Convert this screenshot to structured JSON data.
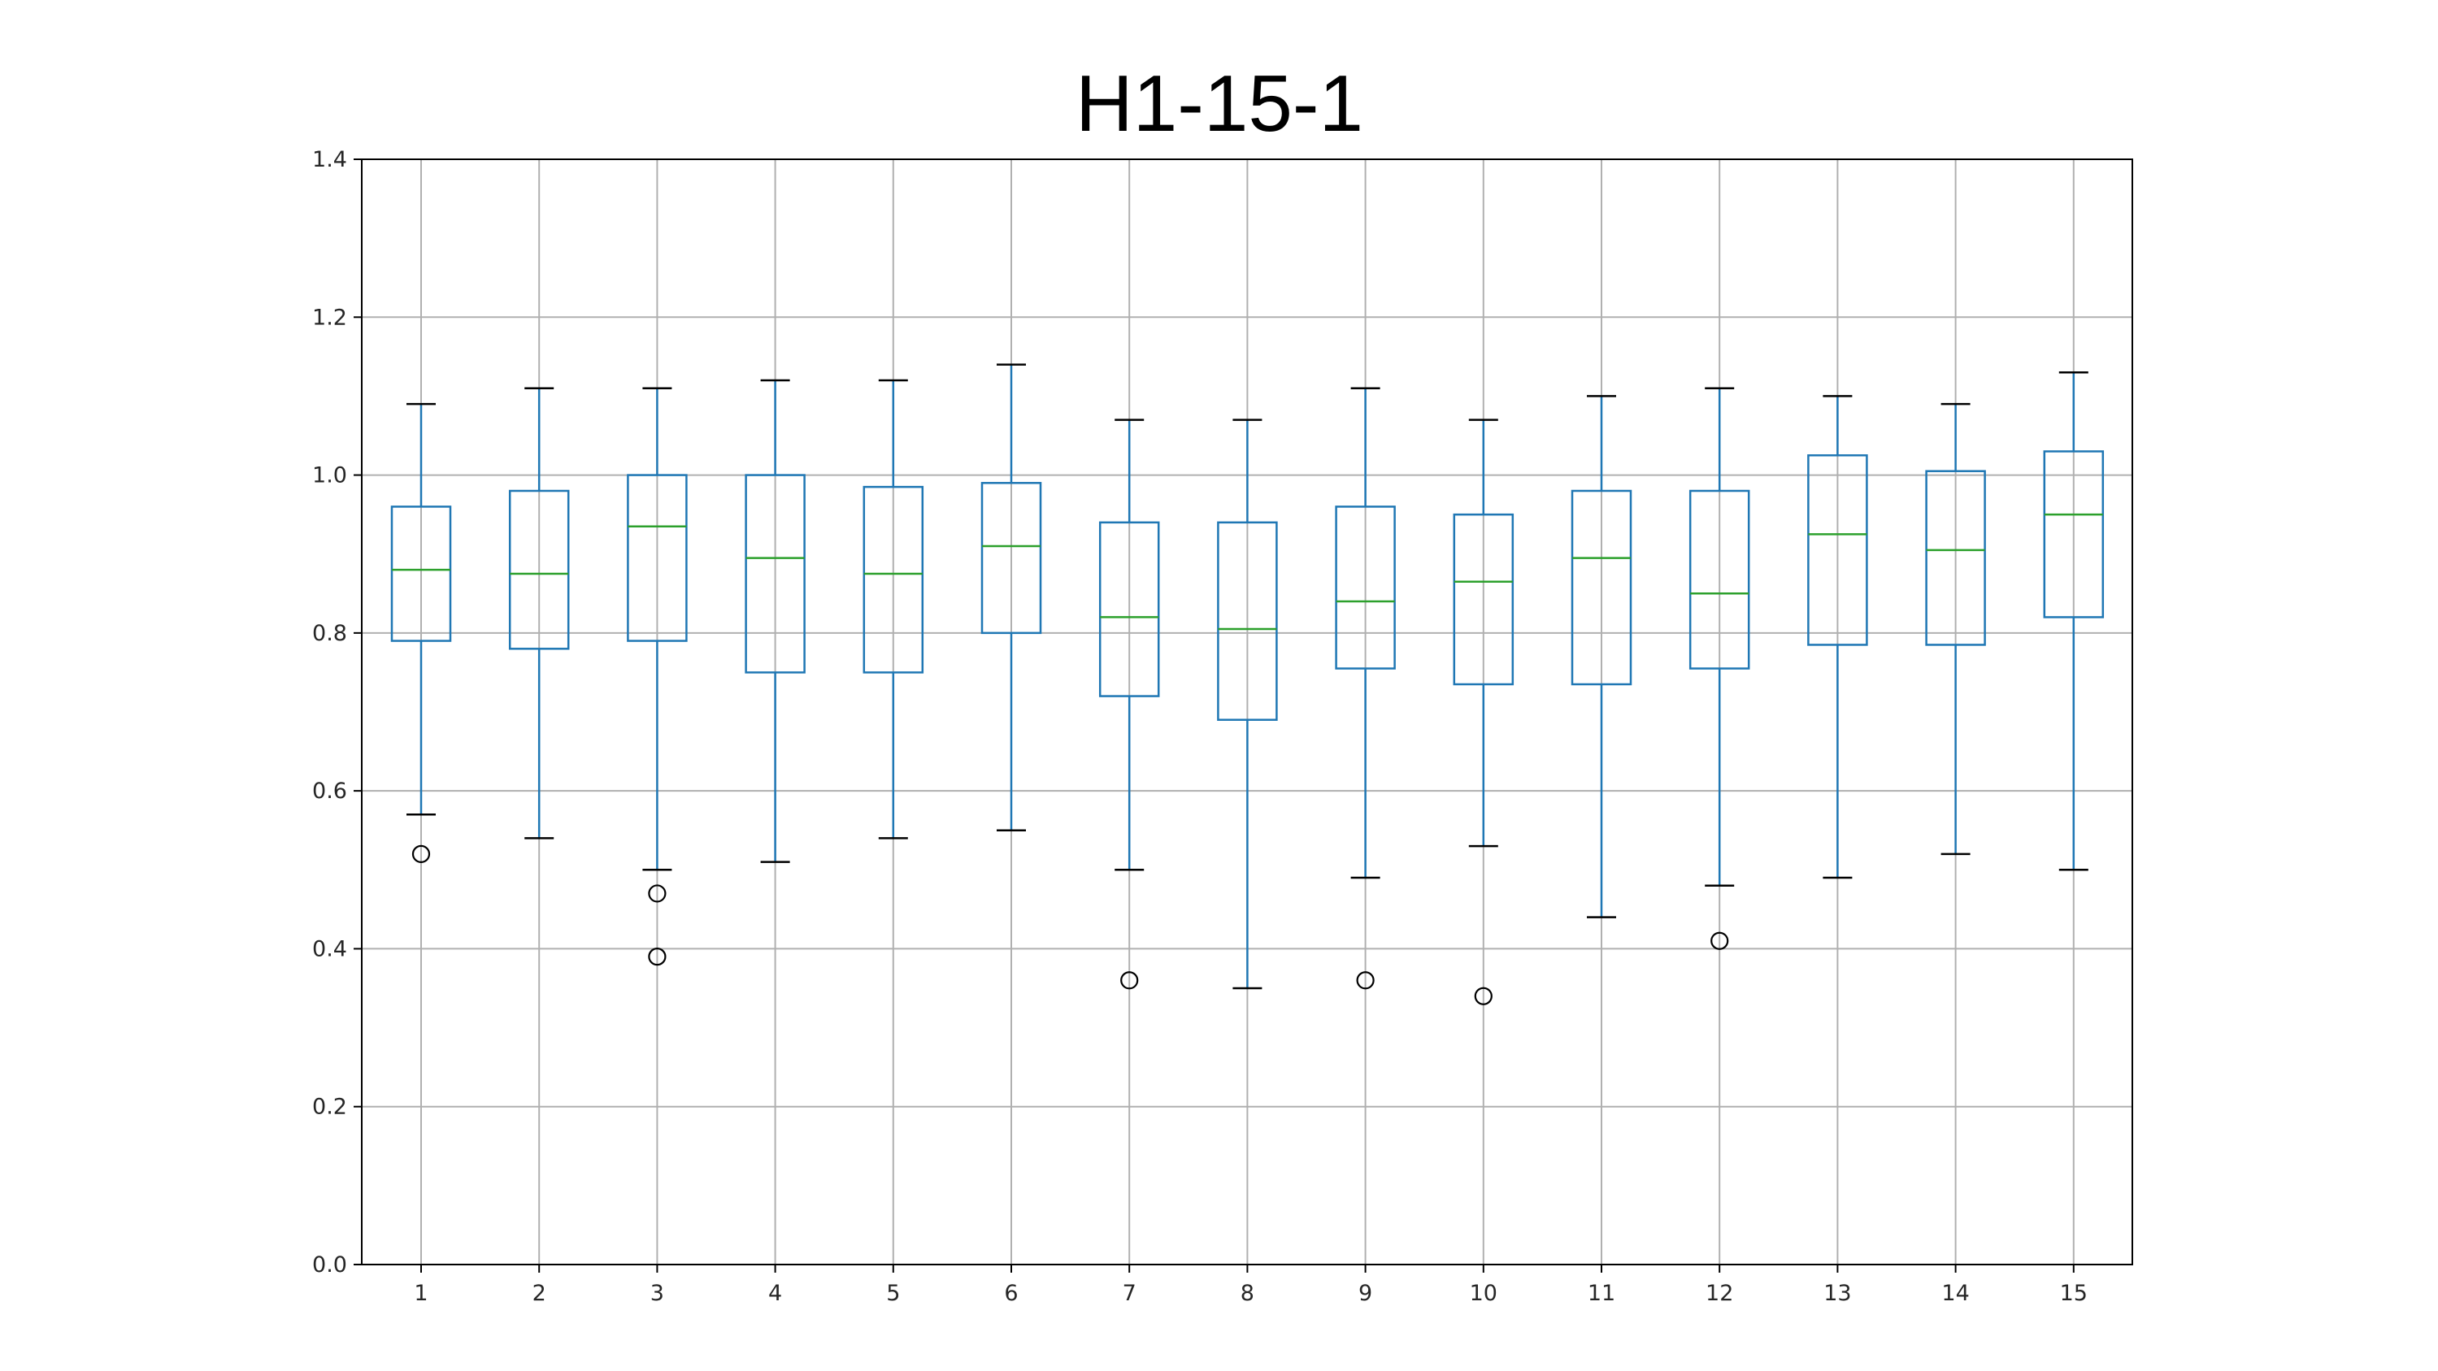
{
  "chart_data": {
    "type": "boxplot",
    "title": "H1-15-1",
    "xlabel": "",
    "ylabel": "",
    "categories": [
      "1",
      "2",
      "3",
      "4",
      "5",
      "6",
      "7",
      "8",
      "9",
      "10",
      "11",
      "12",
      "13",
      "14",
      "15"
    ],
    "ylim": [
      0.0,
      1.4
    ],
    "yticks": [
      "0.0",
      "0.2",
      "0.4",
      "0.6",
      "0.8",
      "1.0",
      "1.2",
      "1.4"
    ],
    "grid": true,
    "boxes": [
      {
        "label": "1",
        "whislo": 0.57,
        "q1": 0.79,
        "med": 0.88,
        "q3": 0.96,
        "whishi": 1.09,
        "fliers": [
          0.52
        ]
      },
      {
        "label": "2",
        "whislo": 0.54,
        "q1": 0.78,
        "med": 0.875,
        "q3": 0.98,
        "whishi": 1.11,
        "fliers": []
      },
      {
        "label": "3",
        "whislo": 0.5,
        "q1": 0.79,
        "med": 0.935,
        "q3": 1.0,
        "whishi": 1.11,
        "fliers": [
          0.47,
          0.39
        ]
      },
      {
        "label": "4",
        "whislo": 0.51,
        "q1": 0.75,
        "med": 0.895,
        "q3": 1.0,
        "whishi": 1.12,
        "fliers": []
      },
      {
        "label": "5",
        "whislo": 0.54,
        "q1": 0.75,
        "med": 0.875,
        "q3": 0.985,
        "whishi": 1.12,
        "fliers": []
      },
      {
        "label": "6",
        "whislo": 0.55,
        "q1": 0.8,
        "med": 0.91,
        "q3": 0.99,
        "whishi": 1.14,
        "fliers": []
      },
      {
        "label": "7",
        "whislo": 0.5,
        "q1": 0.72,
        "med": 0.82,
        "q3": 0.94,
        "whishi": 1.07,
        "fliers": [
          0.36
        ]
      },
      {
        "label": "8",
        "whislo": 0.35,
        "q1": 0.69,
        "med": 0.805,
        "q3": 0.94,
        "whishi": 1.07,
        "fliers": []
      },
      {
        "label": "9",
        "whislo": 0.49,
        "q1": 0.755,
        "med": 0.84,
        "q3": 0.96,
        "whishi": 1.11,
        "fliers": [
          0.36
        ]
      },
      {
        "label": "10",
        "whislo": 0.53,
        "q1": 0.735,
        "med": 0.865,
        "q3": 0.95,
        "whishi": 1.07,
        "fliers": [
          0.34
        ]
      },
      {
        "label": "11",
        "whislo": 0.44,
        "q1": 0.735,
        "med": 0.895,
        "q3": 0.98,
        "whishi": 1.1,
        "fliers": []
      },
      {
        "label": "12",
        "whislo": 0.48,
        "q1": 0.755,
        "med": 0.85,
        "q3": 0.98,
        "whishi": 1.11,
        "fliers": [
          0.41
        ]
      },
      {
        "label": "13",
        "whislo": 0.49,
        "q1": 0.785,
        "med": 0.925,
        "q3": 1.025,
        "whishi": 1.1,
        "fliers": []
      },
      {
        "label": "14",
        "whislo": 0.52,
        "q1": 0.785,
        "med": 0.905,
        "q3": 1.005,
        "whishi": 1.09,
        "fliers": []
      },
      {
        "label": "15",
        "whislo": 0.5,
        "q1": 0.82,
        "med": 0.95,
        "q3": 1.03,
        "whishi": 1.13,
        "fliers": []
      }
    ],
    "colors": {
      "box": "#1f77b4",
      "median": "#2ca02c",
      "whisker": "#1f77b4",
      "cap": "#000000",
      "flier": "#000000",
      "grid": "#b0b0b0",
      "axis": "#000000"
    }
  }
}
